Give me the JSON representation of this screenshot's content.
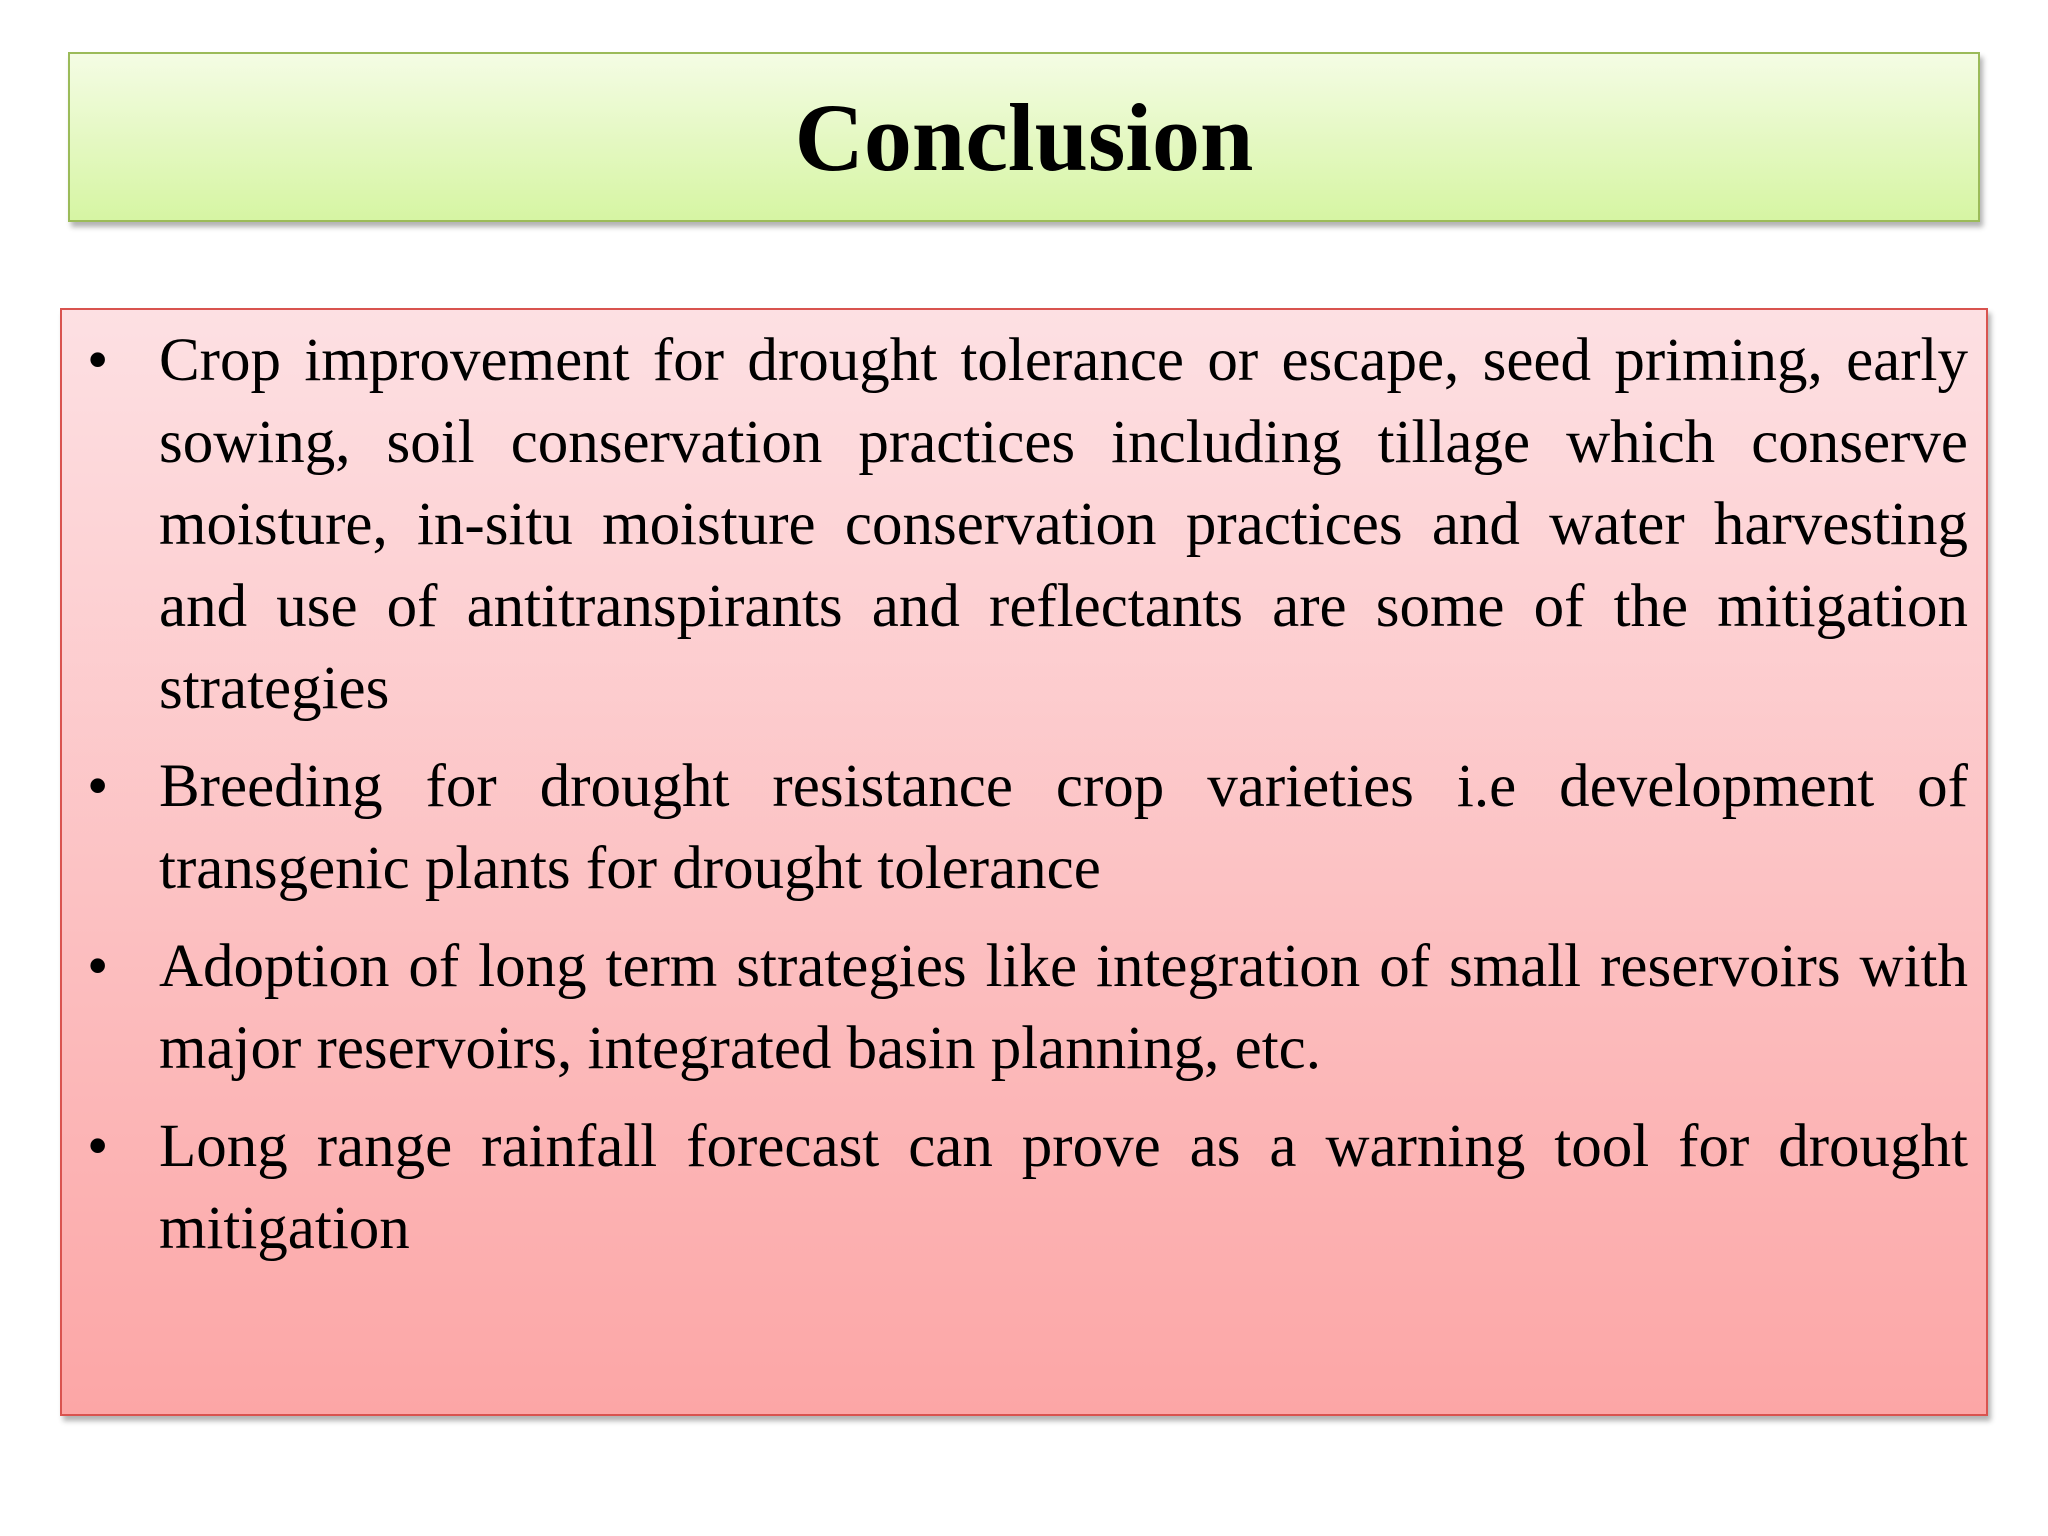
{
  "header": {
    "title": "Conclusion"
  },
  "bullets": [
    "Crop improvement for drought tolerance or escape, seed priming, early sowing, soil conservation practices including tillage which conserve moisture, in-situ moisture conservation practices and water harvesting and use of antitranspirants and reflectants are some of the mitigation strategies",
    "Breeding for drought resistance crop varieties i.e development of transgenic plants for drought tolerance",
    "Adoption of long term strategies like integration of small reservoirs with major reservoirs, integrated basin planning, etc.",
    "Long range rainfall forecast can prove as a warning tool for drought mitigation"
  ]
}
